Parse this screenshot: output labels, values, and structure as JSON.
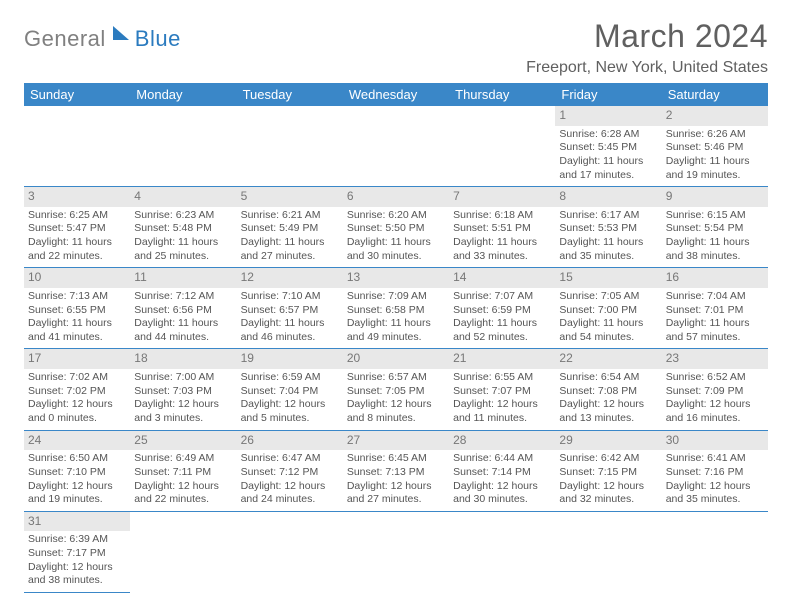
{
  "logo": {
    "text_gray": "General",
    "text_blue": "Blue"
  },
  "title": "March 2024",
  "location": "Freeport, New York, United States",
  "colors": {
    "header_bg": "#3a87c8",
    "header_fg": "#ffffff",
    "grid_line": "#3a87c8",
    "daynum_bg": "#e8e8e8",
    "text": "#555555",
    "title_color": "#606060"
  },
  "day_headers": [
    "Sunday",
    "Monday",
    "Tuesday",
    "Wednesday",
    "Thursday",
    "Friday",
    "Saturday"
  ],
  "weeks": [
    [
      null,
      null,
      null,
      null,
      null,
      {
        "n": "1",
        "sr": "Sunrise: 6:28 AM",
        "ss": "Sunset: 5:45 PM",
        "dl": "Daylight: 11 hours and 17 minutes."
      },
      {
        "n": "2",
        "sr": "Sunrise: 6:26 AM",
        "ss": "Sunset: 5:46 PM",
        "dl": "Daylight: 11 hours and 19 minutes."
      }
    ],
    [
      {
        "n": "3",
        "sr": "Sunrise: 6:25 AM",
        "ss": "Sunset: 5:47 PM",
        "dl": "Daylight: 11 hours and 22 minutes."
      },
      {
        "n": "4",
        "sr": "Sunrise: 6:23 AM",
        "ss": "Sunset: 5:48 PM",
        "dl": "Daylight: 11 hours and 25 minutes."
      },
      {
        "n": "5",
        "sr": "Sunrise: 6:21 AM",
        "ss": "Sunset: 5:49 PM",
        "dl": "Daylight: 11 hours and 27 minutes."
      },
      {
        "n": "6",
        "sr": "Sunrise: 6:20 AM",
        "ss": "Sunset: 5:50 PM",
        "dl": "Daylight: 11 hours and 30 minutes."
      },
      {
        "n": "7",
        "sr": "Sunrise: 6:18 AM",
        "ss": "Sunset: 5:51 PM",
        "dl": "Daylight: 11 hours and 33 minutes."
      },
      {
        "n": "8",
        "sr": "Sunrise: 6:17 AM",
        "ss": "Sunset: 5:53 PM",
        "dl": "Daylight: 11 hours and 35 minutes."
      },
      {
        "n": "9",
        "sr": "Sunrise: 6:15 AM",
        "ss": "Sunset: 5:54 PM",
        "dl": "Daylight: 11 hours and 38 minutes."
      }
    ],
    [
      {
        "n": "10",
        "sr": "Sunrise: 7:13 AM",
        "ss": "Sunset: 6:55 PM",
        "dl": "Daylight: 11 hours and 41 minutes."
      },
      {
        "n": "11",
        "sr": "Sunrise: 7:12 AM",
        "ss": "Sunset: 6:56 PM",
        "dl": "Daylight: 11 hours and 44 minutes."
      },
      {
        "n": "12",
        "sr": "Sunrise: 7:10 AM",
        "ss": "Sunset: 6:57 PM",
        "dl": "Daylight: 11 hours and 46 minutes."
      },
      {
        "n": "13",
        "sr": "Sunrise: 7:09 AM",
        "ss": "Sunset: 6:58 PM",
        "dl": "Daylight: 11 hours and 49 minutes."
      },
      {
        "n": "14",
        "sr": "Sunrise: 7:07 AM",
        "ss": "Sunset: 6:59 PM",
        "dl": "Daylight: 11 hours and 52 minutes."
      },
      {
        "n": "15",
        "sr": "Sunrise: 7:05 AM",
        "ss": "Sunset: 7:00 PM",
        "dl": "Daylight: 11 hours and 54 minutes."
      },
      {
        "n": "16",
        "sr": "Sunrise: 7:04 AM",
        "ss": "Sunset: 7:01 PM",
        "dl": "Daylight: 11 hours and 57 minutes."
      }
    ],
    [
      {
        "n": "17",
        "sr": "Sunrise: 7:02 AM",
        "ss": "Sunset: 7:02 PM",
        "dl": "Daylight: 12 hours and 0 minutes."
      },
      {
        "n": "18",
        "sr": "Sunrise: 7:00 AM",
        "ss": "Sunset: 7:03 PM",
        "dl": "Daylight: 12 hours and 3 minutes."
      },
      {
        "n": "19",
        "sr": "Sunrise: 6:59 AM",
        "ss": "Sunset: 7:04 PM",
        "dl": "Daylight: 12 hours and 5 minutes."
      },
      {
        "n": "20",
        "sr": "Sunrise: 6:57 AM",
        "ss": "Sunset: 7:05 PM",
        "dl": "Daylight: 12 hours and 8 minutes."
      },
      {
        "n": "21",
        "sr": "Sunrise: 6:55 AM",
        "ss": "Sunset: 7:07 PM",
        "dl": "Daylight: 12 hours and 11 minutes."
      },
      {
        "n": "22",
        "sr": "Sunrise: 6:54 AM",
        "ss": "Sunset: 7:08 PM",
        "dl": "Daylight: 12 hours and 13 minutes."
      },
      {
        "n": "23",
        "sr": "Sunrise: 6:52 AM",
        "ss": "Sunset: 7:09 PM",
        "dl": "Daylight: 12 hours and 16 minutes."
      }
    ],
    [
      {
        "n": "24",
        "sr": "Sunrise: 6:50 AM",
        "ss": "Sunset: 7:10 PM",
        "dl": "Daylight: 12 hours and 19 minutes."
      },
      {
        "n": "25",
        "sr": "Sunrise: 6:49 AM",
        "ss": "Sunset: 7:11 PM",
        "dl": "Daylight: 12 hours and 22 minutes."
      },
      {
        "n": "26",
        "sr": "Sunrise: 6:47 AM",
        "ss": "Sunset: 7:12 PM",
        "dl": "Daylight: 12 hours and 24 minutes."
      },
      {
        "n": "27",
        "sr": "Sunrise: 6:45 AM",
        "ss": "Sunset: 7:13 PM",
        "dl": "Daylight: 12 hours and 27 minutes."
      },
      {
        "n": "28",
        "sr": "Sunrise: 6:44 AM",
        "ss": "Sunset: 7:14 PM",
        "dl": "Daylight: 12 hours and 30 minutes."
      },
      {
        "n": "29",
        "sr": "Sunrise: 6:42 AM",
        "ss": "Sunset: 7:15 PM",
        "dl": "Daylight: 12 hours and 32 minutes."
      },
      {
        "n": "30",
        "sr": "Sunrise: 6:41 AM",
        "ss": "Sunset: 7:16 PM",
        "dl": "Daylight: 12 hours and 35 minutes."
      }
    ],
    [
      {
        "n": "31",
        "sr": "Sunrise: 6:39 AM",
        "ss": "Sunset: 7:17 PM",
        "dl": "Daylight: 12 hours and 38 minutes."
      },
      null,
      null,
      null,
      null,
      null,
      null
    ]
  ]
}
